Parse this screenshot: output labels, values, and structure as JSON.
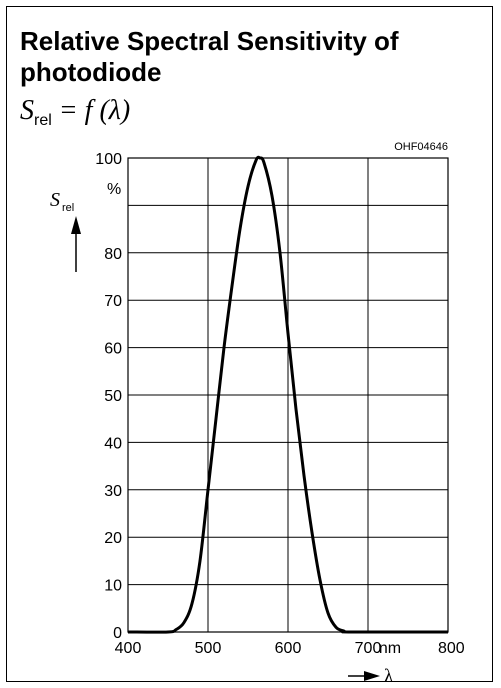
{
  "title": "Relative Spectral Sensitivity of photodiode",
  "formula": {
    "s": "S",
    "rel": "rel",
    "rest": "= f (λ)"
  },
  "chart_data": {
    "type": "line",
    "code": "OHF04646",
    "ylabel": {
      "symbol": "S",
      "sub": "rel",
      "unit": "%"
    },
    "xlabel": {
      "symbol": "λ",
      "unit": "nm"
    },
    "xlim": [
      400,
      800
    ],
    "ylim": [
      0,
      100
    ],
    "xticks": [
      400,
      500,
      600,
      700,
      800
    ],
    "yticks": [
      0,
      10,
      20,
      30,
      40,
      50,
      60,
      70,
      80,
      90,
      100
    ],
    "grid": true,
    "series": [
      {
        "x": [
          400,
          450,
          460,
          470,
          480,
          490,
          500,
          510,
          520,
          530,
          540,
          550,
          560,
          565,
          570,
          580,
          590,
          600,
          610,
          620,
          630,
          640,
          650,
          660,
          670,
          680,
          800
        ],
        "y": [
          0,
          0,
          0.5,
          2,
          6,
          15,
          30,
          45,
          60,
          73,
          85,
          94,
          99.5,
          100,
          99,
          92,
          80,
          63,
          47,
          33,
          21,
          11,
          4,
          1,
          0.2,
          0,
          0
        ]
      }
    ]
  }
}
